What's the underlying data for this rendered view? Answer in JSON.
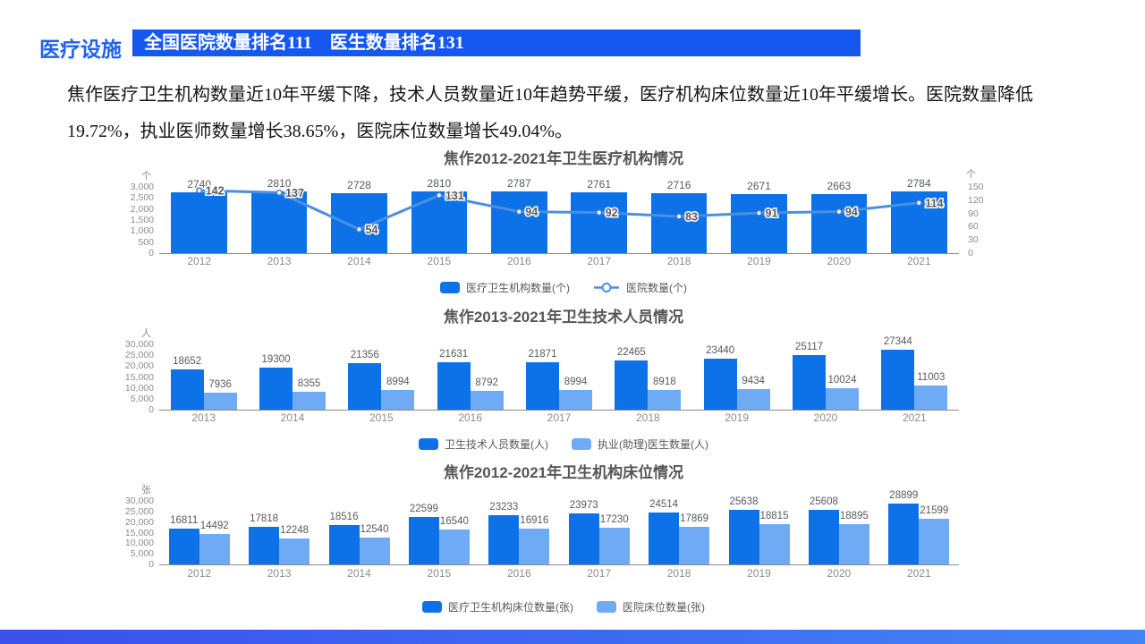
{
  "page": {
    "tag_label": "医疗设施",
    "banner": "全国医院数量排名111　医生数量排名131",
    "paragraph": "焦作医疗卫生机构数量近10年平缓下降，技术人员数量近10年趋势平缓，医疗机构床位数量近10年平缓增长。医院数量降低19.72%，执业医师数量增长38.65%，医院床位数量增长49.04%。"
  },
  "colors": {
    "dark_bar": "#0d72e8",
    "light_bar": "#6fabf4",
    "line": "#4a8fe2",
    "line_marker_stroke": "#3f7edc",
    "banner_blue": "#1657f0",
    "label_gray": "#595959",
    "axis_gray": "#8c8c8c"
  },
  "chart_data": [
    {
      "type": "bar+line",
      "title": "焦作2012-2021年卫生医疗机构情况",
      "categories": [
        "2012",
        "2013",
        "2014",
        "2015",
        "2016",
        "2017",
        "2018",
        "2019",
        "2020",
        "2021"
      ],
      "series": [
        {
          "name": "医疗卫生机构数量(个)",
          "kind": "bar",
          "axis": "left",
          "values": [
            2740,
            2810,
            2728,
            2810,
            2787,
            2761,
            2716,
            2671,
            2663,
            2784
          ]
        },
        {
          "name": "医院数量(个)",
          "kind": "line",
          "axis": "right",
          "values": [
            142,
            137,
            54,
            131,
            94,
            92,
            83,
            91,
            94,
            114
          ]
        }
      ],
      "left_axis": {
        "unit": "个",
        "max": 3000,
        "ticks": [
          3000,
          2500,
          2000,
          1500,
          1000,
          500,
          0
        ],
        "tick_labels": [
          "3,000",
          "2,500",
          "2,000",
          "1,500",
          "1,000",
          "500",
          "0"
        ]
      },
      "right_axis": {
        "unit": "个",
        "max": 150,
        "ticks": [
          150,
          120,
          90,
          60,
          30,
          0
        ],
        "tick_labels": [
          "150",
          "120",
          "90",
          "60",
          "30",
          "0"
        ]
      },
      "grid": false,
      "legend_position": "bottom"
    },
    {
      "type": "bar",
      "title": "焦作2013-2021年卫生技术人员情况",
      "categories": [
        "2013",
        "2014",
        "2015",
        "2016",
        "2017",
        "2018",
        "2019",
        "2020",
        "2021"
      ],
      "series": [
        {
          "name": "卫生技术人员数量(人)",
          "kind": "bar",
          "values": [
            18652,
            19300,
            21356,
            21631,
            21871,
            22465,
            23440,
            25117,
            27344
          ]
        },
        {
          "name": "执业(助理)医生数量(人)",
          "kind": "bar",
          "values": [
            7936,
            8355,
            8994,
            8792,
            8994,
            8918,
            9434,
            10024,
            11003
          ]
        }
      ],
      "left_axis": {
        "unit": "人",
        "max": 30000,
        "ticks": [
          30000,
          25000,
          20000,
          15000,
          10000,
          5000,
          0
        ],
        "tick_labels": [
          "30,000",
          "25,000",
          "20,000",
          "15,000",
          "10,000",
          "5,000",
          "0"
        ]
      },
      "grid": false,
      "legend_position": "bottom"
    },
    {
      "type": "bar",
      "title": "焦作2012-2021年卫生机构床位情况",
      "categories": [
        "2012",
        "2013",
        "2014",
        "2015",
        "2016",
        "2017",
        "2018",
        "2019",
        "2020",
        "2021"
      ],
      "series": [
        {
          "name": "医疗卫生机构床位数量(张)",
          "kind": "bar",
          "values": [
            16811,
            17818,
            18516,
            22599,
            23233,
            23973,
            24514,
            25638,
            25608,
            28899
          ]
        },
        {
          "name": "医院床位数量(张)",
          "kind": "bar",
          "values": [
            14492,
            12248,
            12540,
            16540,
            16916,
            17230,
            17869,
            18815,
            18895,
            21599
          ]
        }
      ],
      "left_axis": {
        "unit": "张",
        "max": 30000,
        "ticks": [
          30000,
          25000,
          20000,
          15000,
          10000,
          5000,
          0
        ],
        "tick_labels": [
          "30,000",
          "25,000",
          "20,000",
          "15,000",
          "10,000",
          "5,000",
          "0"
        ]
      },
      "grid": false,
      "legend_position": "bottom"
    }
  ]
}
